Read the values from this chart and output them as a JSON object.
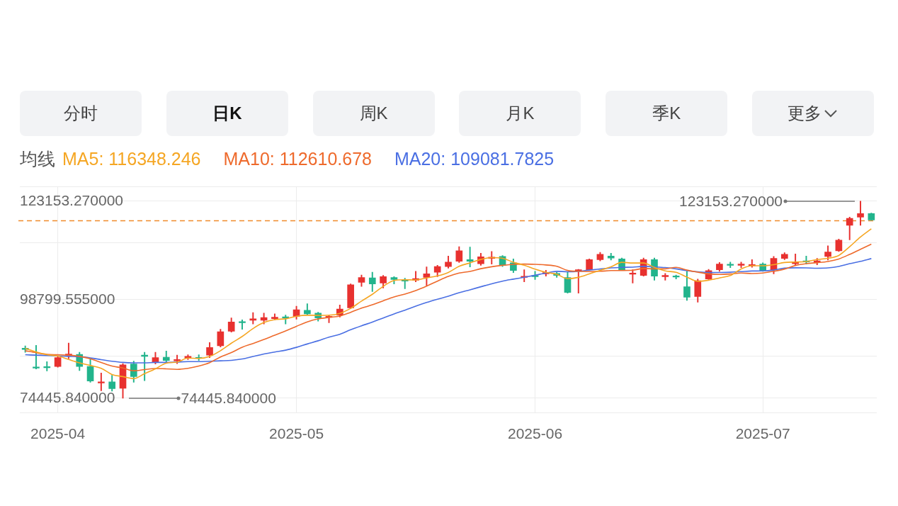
{
  "chart_data": {
    "type": "candlestick",
    "categories": [
      null,
      null,
      null,
      "2025-04",
      null,
      null,
      null,
      null,
      null,
      null,
      null,
      null,
      null,
      null,
      null,
      null,
      null,
      null,
      null,
      null,
      null,
      null,
      null,
      null,
      null,
      "2025-05",
      null,
      null,
      null,
      null,
      null,
      null,
      null,
      null,
      null,
      null,
      null,
      null,
      null,
      null,
      null,
      null,
      null,
      null,
      null,
      null,
      null,
      "2025-06",
      null,
      null,
      null,
      null,
      null,
      null,
      null,
      null,
      null,
      null,
      null,
      null,
      null,
      null,
      null,
      null,
      null,
      null,
      null,
      null,
      "2025-07",
      null,
      null,
      null,
      null,
      null,
      null,
      null,
      null,
      null,
      null
    ],
    "ohlc": [
      [
        86800,
        87400,
        85800,
        86500
      ],
      [
        82100,
        87500,
        81700,
        81900
      ],
      [
        82200,
        83500,
        81200,
        82000
      ],
      [
        82300,
        84800,
        82100,
        84500
      ],
      [
        85100,
        88100,
        84200,
        85300
      ],
      [
        85300,
        85800,
        81300,
        82300
      ],
      [
        82300,
        84200,
        78400,
        78700
      ],
      [
        78200,
        80700,
        76300,
        78500
      ],
      [
        78500,
        80100,
        76200,
        76800
      ],
      [
        76900,
        83000,
        74445.84,
        82700
      ],
      [
        82900,
        83600,
        78400,
        79800
      ],
      [
        85100,
        85800,
        78800,
        84800
      ],
      [
        83300,
        85800,
        82900,
        84500
      ],
      [
        84600,
        86100,
        83200,
        83800
      ],
      [
        83700,
        85100,
        83000,
        84000
      ],
      [
        84400,
        85200,
        84000,
        84800
      ],
      [
        84500,
        85200,
        83800,
        84300
      ],
      [
        85100,
        88200,
        84500,
        87000
      ],
      [
        87400,
        91500,
        87100,
        90900
      ],
      [
        91000,
        94300,
        90800,
        93300
      ],
      [
        93400,
        93800,
        91500,
        93100
      ],
      [
        93700,
        95600,
        92800,
        94100
      ],
      [
        93700,
        95500,
        92800,
        94400
      ],
      [
        94100,
        95300,
        93800,
        94500
      ],
      [
        94500,
        95000,
        92800,
        94300
      ],
      [
        94700,
        97200,
        94000,
        96300
      ],
      [
        96200,
        97800,
        95000,
        95300
      ],
      [
        95500,
        95700,
        93500,
        94300
      ],
      [
        94400,
        95000,
        93100,
        94700
      ],
      [
        95000,
        97500,
        94500,
        96500
      ],
      [
        96800,
        102700,
        96600,
        102500
      ],
      [
        103100,
        104900,
        102100,
        104300
      ],
      [
        104200,
        105600,
        100800,
        102700
      ],
      [
        102900,
        104800,
        101700,
        104500
      ],
      [
        104300,
        104500,
        102700,
        103800
      ],
      [
        103600,
        104100,
        101500,
        103400
      ],
      [
        103600,
        105800,
        103200,
        104000
      ],
      [
        104300,
        106900,
        102300,
        105200
      ],
      [
        105600,
        107300,
        104500,
        107000
      ],
      [
        107000,
        109600,
        106600,
        108100
      ],
      [
        108300,
        111900,
        108000,
        110900
      ],
      [
        108700,
        111800,
        106900,
        108300
      ],
      [
        107700,
        110300,
        107300,
        109400
      ],
      [
        109000,
        110700,
        107600,
        109300
      ],
      [
        109500,
        109700,
        107000,
        107300
      ],
      [
        107900,
        108900,
        105500,
        106000
      ],
      [
        104300,
        106200,
        103200,
        104600
      ],
      [
        104800,
        105800,
        103800,
        104500
      ],
      [
        105200,
        106100,
        104600,
        105500
      ],
      [
        105300,
        105600,
        104300,
        104800
      ],
      [
        104300,
        105600,
        100400,
        100600
      ],
      [
        105900,
        106300,
        100400,
        106200
      ],
      [
        106200,
        108900,
        106000,
        108700
      ],
      [
        108700,
        110500,
        108400,
        110000
      ],
      [
        109600,
        110300,
        108600,
        109100
      ],
      [
        108900,
        109100,
        106000,
        106200
      ],
      [
        105100,
        106200,
        102900,
        105300
      ],
      [
        104800,
        109100,
        104600,
        108700
      ],
      [
        108700,
        109100,
        103600,
        104600
      ],
      [
        104500,
        105300,
        103600,
        104800
      ],
      [
        104600,
        104900,
        103900,
        104400
      ],
      [
        102000,
        105800,
        98600,
        99400
      ],
      [
        99600,
        103900,
        98200,
        103500
      ],
      [
        103900,
        106300,
        103800,
        106000
      ],
      [
        106200,
        108000,
        105800,
        107600
      ],
      [
        107500,
        108100,
        106700,
        107300
      ],
      [
        107300,
        108100,
        106700,
        107600
      ],
      [
        107200,
        108700,
        106800,
        107400
      ],
      [
        107600,
        107900,
        105800,
        106000
      ],
      [
        106200,
        109500,
        105200,
        109000
      ],
      [
        109000,
        110400,
        108700,
        110000
      ],
      [
        107700,
        110100,
        107300,
        108100
      ],
      [
        108400,
        109600,
        107600,
        108100
      ],
      [
        108000,
        109000,
        107400,
        108400
      ],
      [
        109500,
        112100,
        108600,
        110600
      ],
      [
        110900,
        113800,
        110700,
        113500
      ],
      [
        117200,
        119200,
        113600,
        118900
      ],
      [
        119200,
        123153.27,
        117200,
        120100
      ],
      [
        120100,
        120200,
        118400,
        118500
      ]
    ],
    "colors": [
      "#22b48c",
      "#22b48c",
      "#22b48c",
      "#e8312f",
      "#e8312f",
      "#22b48c",
      "#22b48c",
      "#e8312f",
      "#22b48c",
      "#e8312f",
      "#22b48c",
      "#22b48c",
      "#e8312f",
      "#22b48c",
      "#e8312f",
      "#e8312f",
      "#22b48c",
      "#e8312f",
      "#e8312f",
      "#e8312f",
      "#22b48c",
      "#e8312f",
      "#e8312f",
      "#e8312f",
      "#22b48c",
      "#e8312f",
      "#22b48c",
      "#22b48c",
      "#e8312f",
      "#e8312f",
      "#e8312f",
      "#e8312f",
      "#22b48c",
      "#e8312f",
      "#22b48c",
      "#22b48c",
      "#e8312f",
      "#e8312f",
      "#e8312f",
      "#e8312f",
      "#e8312f",
      "#22b48c",
      "#e8312f",
      "#e8312f",
      "#22b48c",
      "#22b48c",
      "#e8312f",
      "#22b48c",
      "#e8312f",
      "#22b48c",
      "#22b48c",
      "#e8312f",
      "#e8312f",
      "#e8312f",
      "#22b48c",
      "#22b48c",
      "#e8312f",
      "#e8312f",
      "#22b48c",
      "#e8312f",
      "#22b48c",
      "#22b48c",
      "#e8312f",
      "#e8312f",
      "#e8312f",
      "#22b48c",
      "#e8312f",
      "#e8312f",
      "#22b48c",
      "#e8312f",
      "#e8312f",
      "#e8312f",
      "#22b48c",
      "#e8312f",
      "#e8312f",
      "#e8312f",
      "#e8312f",
      "#e8312f",
      "#22b48c"
    ],
    "series": [
      {
        "name": "MA5: 116348.246",
        "type": "line",
        "color": "#f5a623",
        "values": [
          86800,
          85900,
          85200,
          84900,
          84040,
          83200,
          82560,
          81860,
          80320,
          79800,
          79300,
          80520,
          81720,
          83120,
          83380,
          84380,
          84280,
          84780,
          86200,
          88060,
          89720,
          91680,
          93160,
          93880,
          94080,
          94720,
          94960,
          94940,
          94980,
          95420,
          96660,
          98460,
          100140,
          102100,
          103560,
          103740,
          103680,
          104180,
          104680,
          105540,
          107040,
          107900,
          108740,
          109200,
          109040,
          108060,
          107320,
          106340,
          105580,
          105080,
          104000,
          104320,
          105160,
          106060,
          106920,
          108040,
          107860,
          107860,
          106780,
          105920,
          105560,
          104380,
          103340,
          103620,
          104180,
          104760,
          106400,
          107180,
          107180,
          107460,
          108000,
          108100,
          108240,
          108720,
          109040,
          109740,
          111900,
          114300,
          116320
        ]
      },
      {
        "name": "MA10: 112610.678",
        "type": "line",
        "color": "#ee6a2c",
        "values": [
          86200,
          85700,
          85300,
          85200,
          85100,
          84800,
          84200,
          83300,
          82400,
          81920,
          81250,
          81540,
          81790,
          81720,
          81590,
          81840,
          82400,
          83250,
          84660,
          85720,
          87050,
          87980,
          88970,
          90040,
          91070,
          92220,
          93320,
          94050,
          94430,
          94750,
          95690,
          96710,
          97540,
          98540,
          99490,
          100200,
          101070,
          102160,
          103390,
          104550,
          105390,
          105790,
          106460,
          106940,
          107290,
          107550,
          107610,
          107540,
          107390,
          107060,
          106030,
          105820,
          105750,
          105820,
          106000,
          106020,
          106090,
          106510,
          106420,
          106420,
          106800,
          106120,
          105600,
          105200,
          105050,
          105160,
          105390,
          105260,
          105400,
          105820,
          106380,
          107250,
          107710,
          107950,
          108250,
          108870,
          110000,
          111270,
          112520
        ]
      },
      {
        "name": "MA20: 109081.7825",
        "type": "line",
        "color": "#4a6fe3",
        "values": [
          85200,
          85100,
          85000,
          84900,
          84800,
          84700,
          84400,
          84000,
          83600,
          83300,
          83200,
          83200,
          83300,
          83300,
          83400,
          83500,
          83500,
          83600,
          83700,
          83820,
          84150,
          84760,
          85380,
          85880,
          86330,
          87030,
          87860,
          88650,
          89550,
          90240,
          91370,
          92350,
          93260,
          94290,
          95280,
          96210,
          97200,
          98110,
          98910,
          99650,
          100540,
          101250,
          102000,
          102740,
          103390,
          103880,
          104340,
          104850,
          105390,
          105810,
          105710,
          105810,
          106110,
          106380,
          106650,
          106790,
          106850,
          107030,
          106910,
          106740,
          106420,
          105970,
          105680,
          105510,
          105530,
          105590,
          105740,
          105890,
          105910,
          106120,
          106590,
          106690,
          106660,
          106580,
          106650,
          107020,
          107700,
          108270,
          108960
        ]
      }
    ],
    "legend_title": "均线",
    "legend": "top left",
    "marker": "none",
    "ylim": [
      70800,
      126800
    ],
    "yticks": [
      {
        "value": 70800,
        "label": null
      },
      {
        "value": 74445.84,
        "label": "74445.840000"
      },
      {
        "value": 84800,
        "label": null
      },
      {
        "value": 98799.555,
        "label": "98799.555000"
      },
      {
        "value": 112800,
        "label": null
      },
      {
        "value": 123153.27,
        "label": "123153.270000"
      },
      {
        "value": 126800,
        "label": null
      }
    ],
    "grid": true,
    "ref_lines": [
      {
        "axis": "y",
        "value": 118300,
        "color": "#f08a2a",
        "line_style": "dashed"
      }
    ],
    "annotations": [
      "分时",
      "日K",
      "周K",
      "月K",
      "季K",
      "更多",
      "123153.270000",
      "74445.840000"
    ]
  }
}
